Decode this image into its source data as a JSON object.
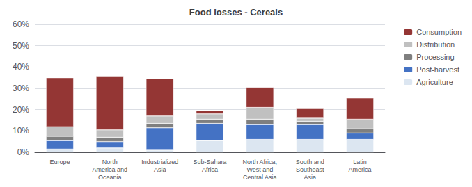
{
  "chart_data": {
    "type": "bar",
    "title": "Food losses - Cereals",
    "stacked": true,
    "categories": [
      "Europe",
      "North\nAmerica and\nOceania",
      "Industrialized\nAsia",
      "Sub-Sahara\nAfrica",
      "North Africa,\nWest and\nCentral Asia",
      "South and\nSoutheast\nAsia",
      "Latin\nAmerica"
    ],
    "series": [
      {
        "name": "Agriculture",
        "color": "#dce6f1",
        "values": [
          1.5,
          2.0,
          1.0,
          5.5,
          6.0,
          6.0,
          6.0
        ]
      },
      {
        "name": "Post-harvest",
        "color": "#4472c4",
        "values": [
          4.0,
          3.0,
          10.5,
          8.0,
          7.0,
          7.0,
          3.0
        ]
      },
      {
        "name": "Processing",
        "color": "#7f7f7f",
        "values": [
          2.0,
          2.0,
          2.0,
          2.0,
          2.5,
          1.5,
          2.0
        ]
      },
      {
        "name": "Distribution",
        "color": "#c0c0c0",
        "values": [
          4.5,
          3.5,
          3.5,
          2.5,
          5.5,
          1.5,
          4.5
        ]
      },
      {
        "name": "Consumption",
        "color": "#943634",
        "values": [
          23.0,
          25.0,
          17.5,
          1.5,
          9.5,
          4.5,
          10.0
        ]
      }
    ],
    "ylim": [
      0,
      60
    ],
    "yticks": [
      {
        "value": 0,
        "label": "0%"
      },
      {
        "value": 10,
        "label": "10%"
      },
      {
        "value": 20,
        "label": "20%"
      },
      {
        "value": 30,
        "label": "30%"
      },
      {
        "value": 40,
        "label": "40%"
      },
      {
        "value": 50,
        "label": "50%"
      },
      {
        "value": 60,
        "label": "60%"
      }
    ],
    "grid": true,
    "legend": "right"
  }
}
